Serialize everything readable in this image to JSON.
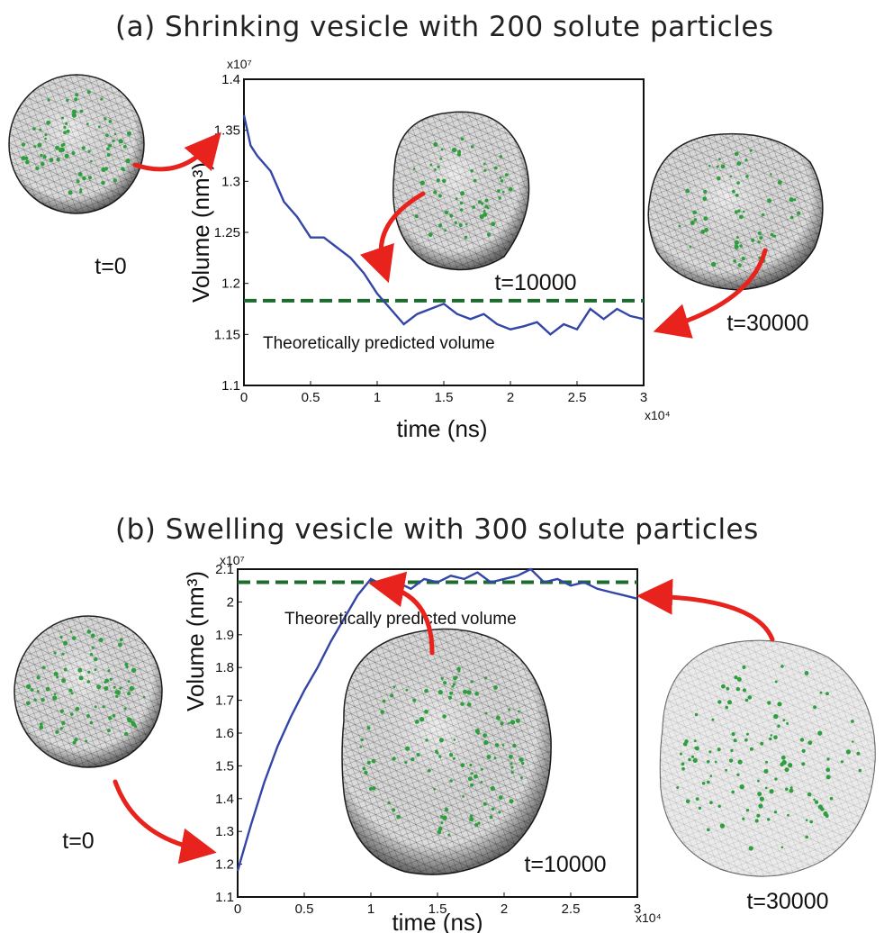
{
  "panels": [
    {
      "title": "(a) Shrinking vesicle with 200 solute particles",
      "theory_label": "Theoretically predicted volume",
      "snapshots": [
        "t=0",
        "t=10000",
        "t=30000"
      ]
    },
    {
      "title": "(b) Swelling vesicle with 300 solute particles",
      "theory_label": "Theoretically predicted volume",
      "snapshots": [
        "t=0",
        "t=10000",
        "t=30000"
      ]
    }
  ],
  "colors": {
    "series": "#3346a8",
    "theory": "#1d6b2e",
    "arrow": "#e8221c",
    "solute": "#2e9e3e",
    "mesh": "#444444"
  },
  "chart_data": [
    {
      "type": "line",
      "title": "(a) Shrinking vesicle with 200 solute particles",
      "xlabel": "time (ns)",
      "ylabel": "Volume (nm³)",
      "x_multiplier": "x10⁴",
      "y_multiplier": "x10⁷",
      "xlim": [
        0,
        3
      ],
      "ylim": [
        1.1,
        1.4
      ],
      "xticks": [
        "0",
        "0.5",
        "1",
        "1.5",
        "2",
        "2.5",
        "3"
      ],
      "yticks": [
        "1.1",
        "1.15",
        "1.2",
        "1.25",
        "1.3",
        "1.35",
        "1.4"
      ],
      "x": [
        0,
        0.05,
        0.1,
        0.2,
        0.3,
        0.4,
        0.5,
        0.6,
        0.7,
        0.8,
        0.9,
        1.0,
        1.1,
        1.2,
        1.3,
        1.4,
        1.5,
        1.6,
        1.7,
        1.8,
        1.9,
        2.0,
        2.1,
        2.2,
        2.3,
        2.4,
        2.5,
        2.6,
        2.7,
        2.8,
        2.9,
        3.0
      ],
      "values": [
        1.365,
        1.335,
        1.325,
        1.31,
        1.28,
        1.265,
        1.245,
        1.245,
        1.235,
        1.225,
        1.21,
        1.19,
        1.175,
        1.16,
        1.17,
        1.175,
        1.18,
        1.17,
        1.165,
        1.17,
        1.16,
        1.155,
        1.158,
        1.162,
        1.15,
        1.16,
        1.155,
        1.175,
        1.165,
        1.175,
        1.168,
        1.165
      ],
      "theory_line": 1.183,
      "grid": false,
      "series_color": "#3346a8"
    },
    {
      "type": "line",
      "title": "(b) Swelling vesicle with 300 solute particles",
      "xlabel": "time (ns)",
      "ylabel": "Volume (nm³)",
      "x_multiplier": "x10⁴",
      "y_multiplier": "x10⁷",
      "xlim": [
        0,
        3
      ],
      "ylim": [
        1.1,
        2.1
      ],
      "xticks": [
        "0",
        "0.5",
        "1",
        "1.5",
        "2",
        "2.5",
        "3"
      ],
      "yticks": [
        "1.1",
        "1.2",
        "1.3",
        "1.4",
        "1.5",
        "1.6",
        "1.7",
        "1.8",
        "1.9",
        "2",
        "2.1"
      ],
      "x": [
        0,
        0.05,
        0.1,
        0.2,
        0.3,
        0.4,
        0.5,
        0.6,
        0.7,
        0.8,
        0.9,
        1.0,
        1.1,
        1.2,
        1.3,
        1.4,
        1.5,
        1.6,
        1.7,
        1.8,
        1.9,
        2.0,
        2.1,
        2.2,
        2.3,
        2.4,
        2.5,
        2.6,
        2.7,
        2.8,
        2.9,
        3.0
      ],
      "values": [
        1.18,
        1.25,
        1.32,
        1.45,
        1.56,
        1.65,
        1.73,
        1.8,
        1.88,
        1.95,
        2.02,
        2.07,
        2.05,
        2.06,
        2.04,
        2.07,
        2.06,
        2.08,
        2.07,
        2.09,
        2.06,
        2.07,
        2.08,
        2.1,
        2.06,
        2.07,
        2.05,
        2.06,
        2.04,
        2.03,
        2.02,
        2.01
      ],
      "theory_line": 2.06,
      "grid": false,
      "series_color": "#3346a8"
    }
  ]
}
